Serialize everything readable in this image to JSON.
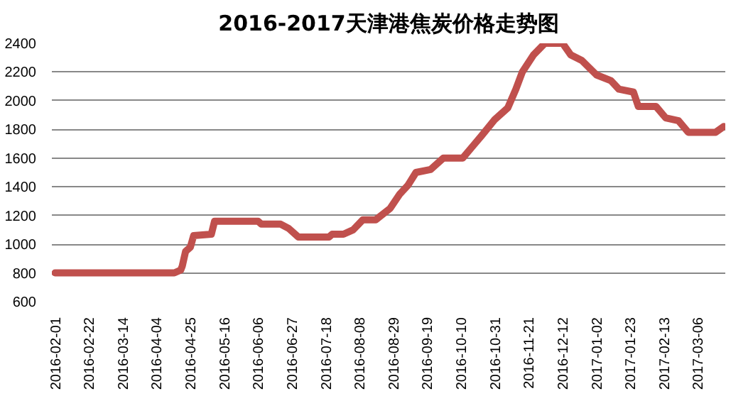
{
  "chart_data": {
    "type": "line",
    "title": "2016-2017天津港焦炭价格走势图",
    "x": [
      "2016-02-01",
      "2016-04-15",
      "2016-04-19",
      "2016-04-20",
      "2016-04-22",
      "2016-04-25",
      "2016-04-27",
      "2016-05-08",
      "2016-05-10",
      "2016-06-06",
      "2016-06-08",
      "2016-06-20",
      "2016-06-25",
      "2016-07-01",
      "2016-07-20",
      "2016-07-22",
      "2016-07-29",
      "2016-08-04",
      "2016-08-10",
      "2016-08-18",
      "2016-08-27",
      "2016-09-02",
      "2016-09-07",
      "2016-09-12",
      "2016-09-21",
      "2016-09-29",
      "2016-10-11",
      "2016-10-17",
      "2016-10-23",
      "2016-10-31",
      "2016-11-08",
      "2016-11-13",
      "2016-11-17",
      "2016-11-24",
      "2016-12-01",
      "2016-12-12",
      "2016-12-17",
      "2016-12-24",
      "2017-01-02",
      "2017-01-11",
      "2017-01-16",
      "2017-01-25",
      "2017-01-28",
      "2017-02-08",
      "2017-02-14",
      "2017-02-22",
      "2017-02-28",
      "2017-03-17",
      "2017-03-22"
    ],
    "series": [
      {
        "color": "#c0504d",
        "values": [
          800,
          800,
          820,
          850,
          950,
          980,
          1060,
          1070,
          1160,
          1160,
          1140,
          1140,
          1110,
          1050,
          1050,
          1070,
          1070,
          1100,
          1170,
          1170,
          1250,
          1350,
          1410,
          1500,
          1520,
          1600,
          1600,
          1680,
          1760,
          1870,
          1950,
          2080,
          2200,
          2320,
          2400,
          2400,
          2320,
          2280,
          2180,
          2140,
          2080,
          2060,
          1960,
          1960,
          1880,
          1860,
          1780,
          1780,
          1820
        ]
      }
    ],
    "xlim": [
      "2016-01-30",
      "2017-03-23"
    ],
    "xticks": [
      "2016-02-01",
      "2016-02-22",
      "2016-03-14",
      "2016-04-04",
      "2016-04-25",
      "2016-05-16",
      "2016-06-06",
      "2016-06-27",
      "2016-07-18",
      "2016-08-08",
      "2016-08-29",
      "2016-09-19",
      "2016-10-10",
      "2016-10-31",
      "2016-11-21",
      "2016-12-12",
      "2017-01-02",
      "2017-01-23",
      "2017-02-13",
      "2017-03-06"
    ],
    "ylim": [
      600,
      2400
    ],
    "yticks": [
      600,
      800,
      1000,
      1200,
      1400,
      1600,
      1800,
      2000,
      2200,
      2400
    ],
    "grid": "y",
    "marker": "none",
    "line_style": "solid"
  }
}
